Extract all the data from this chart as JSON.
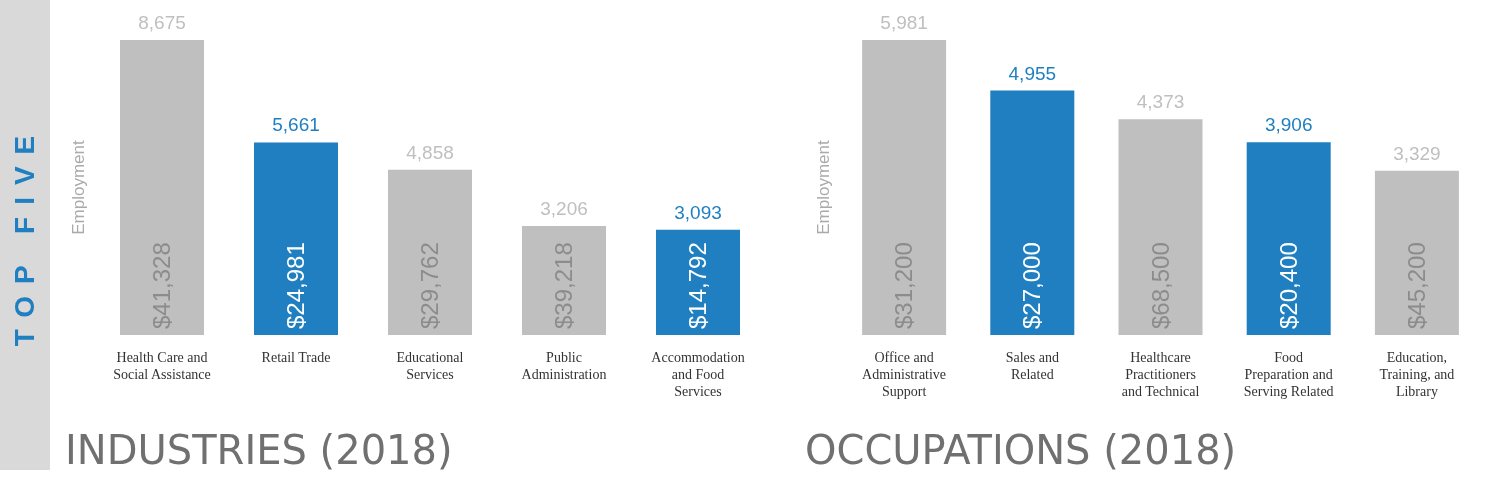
{
  "chart_data": [
    {
      "type": "bar",
      "title": "INDUSTRIES (2018)",
      "ylabel": "Employment",
      "categories": [
        "Health Care and\nSocial Assistance",
        "Retail Trade",
        "Educational\nServices",
        "Public\nAdministration",
        "Accommodation\nand Food\nServices"
      ],
      "values": [
        8675,
        5661,
        4858,
        3206,
        3093
      ],
      "value_labels": [
        "8,675",
        "5,661",
        "4,858",
        "3,206",
        "3,093"
      ],
      "colors": [
        "#bfbfbf",
        "#1f7fc0",
        "#bfbfbf",
        "#bfbfbf",
        "#1f7fc0"
      ],
      "subtitle": "TOP FIVE",
      "annotations": [
        "$41,328",
        "$24,981",
        "$29,762",
        "$39,218",
        "$14,792"
      ]
    },
    {
      "type": "bar",
      "title": "OCCUPATIONS (2018)",
      "ylabel": "Employment",
      "categories": [
        "Office and\nAdministrative\nSupport",
        "Sales and\nRelated",
        "Healthcare\nPractitioners\nand Technical",
        "Food\nPreparation and\nServing Related",
        "Education,\nTraining, and\nLibrary"
      ],
      "values": [
        5981,
        4955,
        4373,
        3906,
        3329
      ],
      "value_labels": [
        "5,981",
        "4,955",
        "4,373",
        "3,906",
        "3,329"
      ],
      "colors": [
        "#bfbfbf",
        "#1f7fc0",
        "#bfbfbf",
        "#1f7fc0",
        "#bfbfbf"
      ],
      "annotations": [
        "$31,200",
        "$27,000",
        "$68,500",
        "$20,400",
        "$45,200"
      ]
    }
  ]
}
